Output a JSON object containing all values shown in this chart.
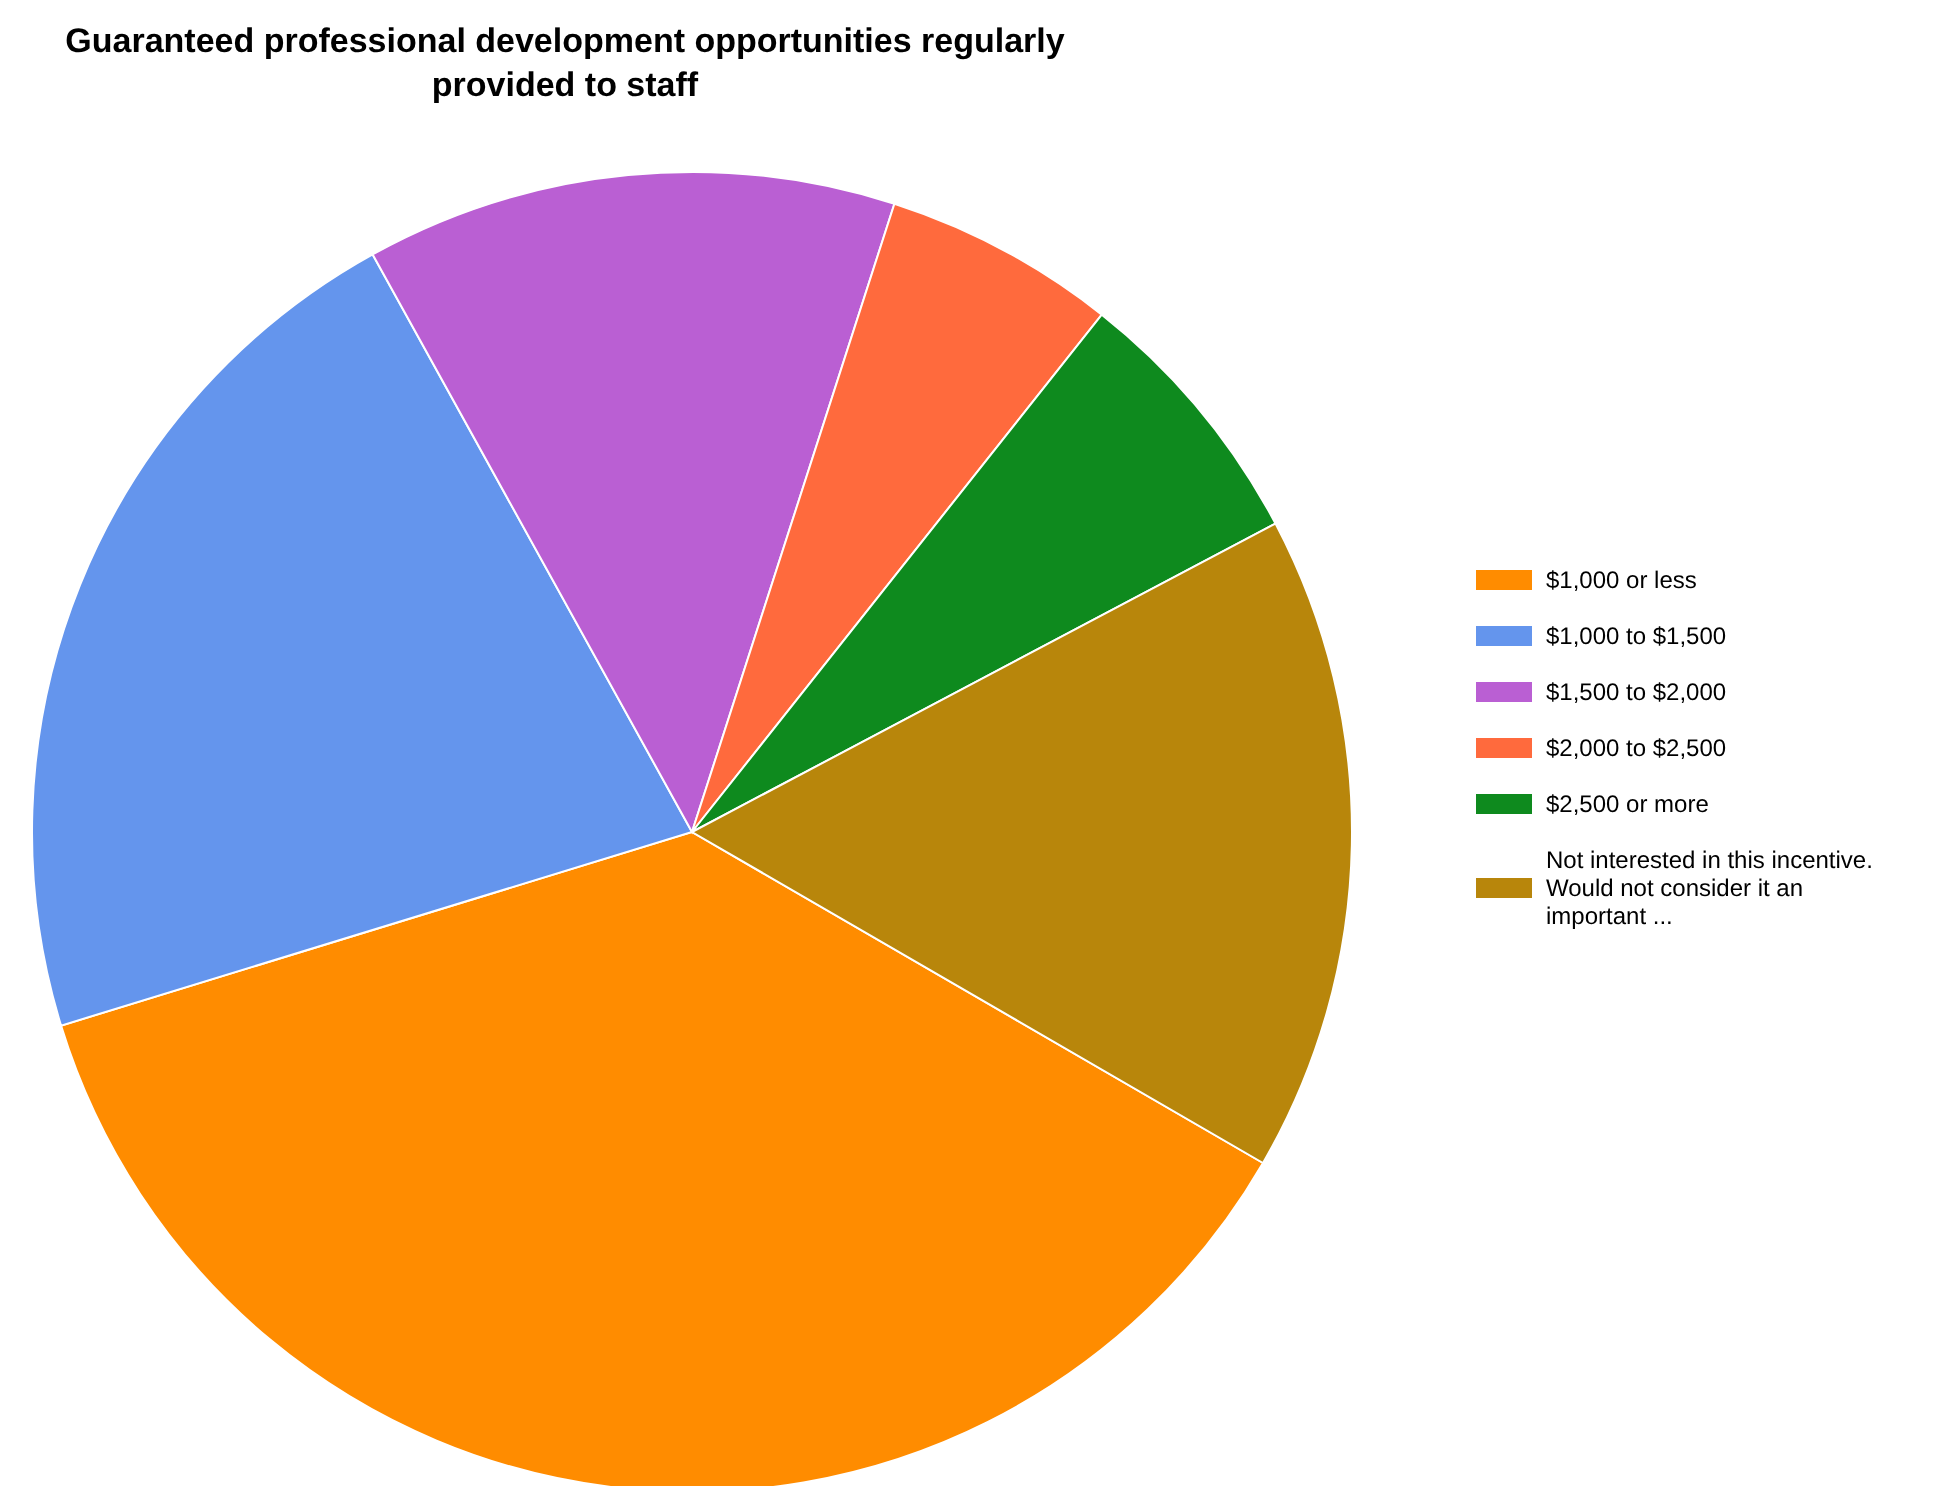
{
  "chart_data": {
    "type": "pie",
    "title": "Guaranteed professional development opportunities regularly provided to staff",
    "categories": [
      "$1,000 or less",
      "$1,000 to $1,500",
      "$1,500 to $2,000",
      "$2,000 to $2,500",
      "$2,500 or more",
      "Not interested in this incentive. Would not consider it an important ..."
    ],
    "values": [
      36.9,
      21.7,
      13.0,
      5.7,
      6.6,
      16.1
    ],
    "colors": [
      "#ff8c00",
      "#6495ed",
      "#ba5fd3",
      "#ff6a3d",
      "#0e8a1e",
      "#b8860b"
    ],
    "legend": "right"
  }
}
